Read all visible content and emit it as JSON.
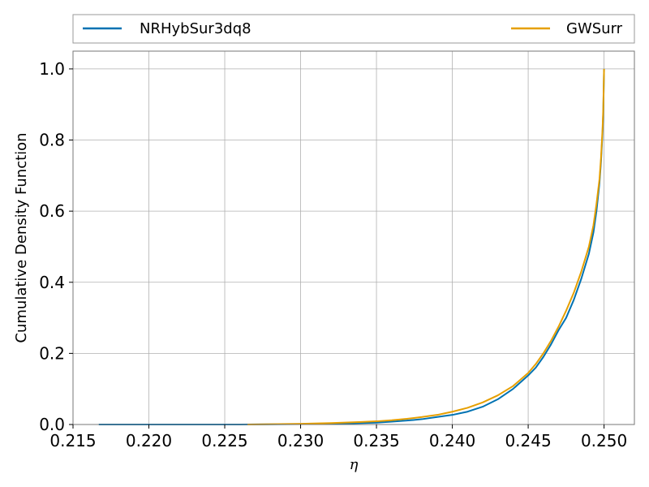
{
  "chart_data": {
    "type": "line",
    "title": "",
    "xlabel": "η",
    "ylabel": "Cumulative Density Function",
    "xlim": [
      0.215,
      0.252
    ],
    "ylim": [
      0.0,
      1.05
    ],
    "grid": true,
    "legend_placement": "top (above plot, expanded across width)",
    "x_ticks": [
      0.215,
      0.22,
      0.225,
      0.23,
      0.235,
      0.24,
      0.245,
      0.25
    ],
    "x_tick_labels": [
      "0.215",
      "0.220",
      "0.225",
      "0.230",
      "0.235",
      "0.240",
      "0.245",
      "0.250"
    ],
    "y_ticks": [
      0.0,
      0.2,
      0.4,
      0.6,
      0.8,
      1.0
    ],
    "y_tick_labels": [
      "0.0",
      "0.2",
      "0.4",
      "0.6",
      "0.8",
      "1.0"
    ],
    "series": [
      {
        "name": "NRHybSur3dq8",
        "color": "#0072b2",
        "x": [
          0.2167,
          0.226,
          0.23,
          0.233,
          0.235,
          0.236,
          0.237,
          0.238,
          0.239,
          0.24,
          0.241,
          0.242,
          0.243,
          0.244,
          0.245,
          0.2455,
          0.246,
          0.2465,
          0.247,
          0.2475,
          0.248,
          0.2485,
          0.249,
          0.2493,
          0.2495,
          0.2497,
          0.2498,
          0.2499,
          0.24995,
          0.25
        ],
        "y": [
          0.0,
          0.0,
          0.001,
          0.003,
          0.005,
          0.008,
          0.011,
          0.015,
          0.021,
          0.027,
          0.036,
          0.05,
          0.071,
          0.1,
          0.138,
          0.16,
          0.19,
          0.225,
          0.265,
          0.3,
          0.35,
          0.41,
          0.48,
          0.54,
          0.6,
          0.68,
          0.74,
          0.82,
          0.88,
          1.0
        ]
      },
      {
        "name": "GWSurr",
        "color": "#e69f00",
        "x": [
          0.2265,
          0.23,
          0.232,
          0.234,
          0.235,
          0.236,
          0.237,
          0.238,
          0.239,
          0.24,
          0.241,
          0.242,
          0.243,
          0.244,
          0.245,
          0.2455,
          0.246,
          0.2465,
          0.247,
          0.2475,
          0.248,
          0.2485,
          0.249,
          0.2493,
          0.2495,
          0.2497,
          0.2498,
          0.2499,
          0.24995,
          0.25
        ],
        "y": [
          0.0,
          0.002,
          0.004,
          0.007,
          0.009,
          0.012,
          0.016,
          0.021,
          0.027,
          0.036,
          0.047,
          0.062,
          0.082,
          0.108,
          0.145,
          0.17,
          0.2,
          0.235,
          0.275,
          0.32,
          0.37,
          0.43,
          0.5,
          0.56,
          0.62,
          0.69,
          0.75,
          0.83,
          0.89,
          1.0
        ]
      }
    ]
  }
}
